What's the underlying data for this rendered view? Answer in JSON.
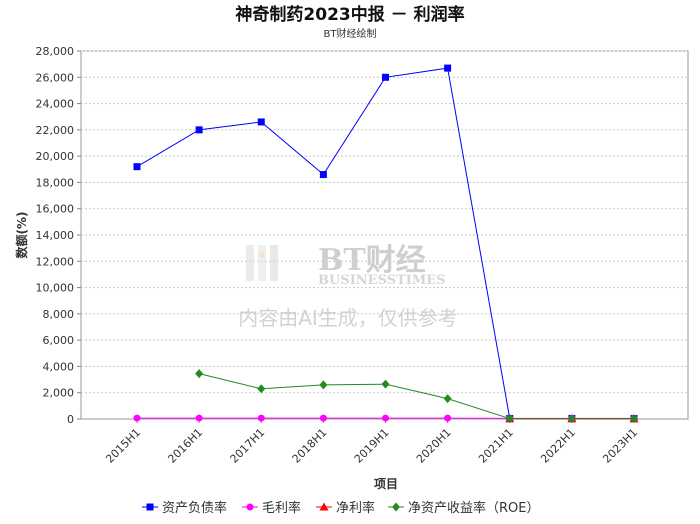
{
  "chart_data": {
    "type": "line",
    "title": "神奇制药2023中报 － 利润率",
    "subtitle": "BT财经绘制",
    "xlabel": "项目",
    "ylabel": "数额(%)",
    "ylim": [
      0,
      28000
    ],
    "yticks": [
      0,
      2000,
      4000,
      6000,
      8000,
      10000,
      12000,
      14000,
      16000,
      18000,
      20000,
      22000,
      24000,
      26000,
      28000
    ],
    "ytick_labels": [
      "0",
      "2,000",
      "4,000",
      "6,000",
      "8,000",
      "10,000",
      "12,000",
      "14,000",
      "16,000",
      "18,000",
      "20,000",
      "22,000",
      "24,000",
      "26,000",
      "28,000"
    ],
    "categories": [
      "2015H1",
      "2016H1",
      "2017H1",
      "2018H1",
      "2019H1",
      "2020H1",
      "2021H1",
      "2022H1",
      "2023H1"
    ],
    "grid": true,
    "legend_position": "bottom",
    "series": [
      {
        "name": "资产负债率",
        "color": "#0000ff",
        "marker": "square",
        "values": [
          19200,
          22000,
          22600,
          18600,
          26000,
          26700,
          40,
          40,
          40
        ]
      },
      {
        "name": "毛利率",
        "color": "#ff00ff",
        "marker": "circle",
        "values": [
          70,
          70,
          70,
          70,
          70,
          70,
          50,
          50,
          50
        ]
      },
      {
        "name": "净利率",
        "color": "#ff0000",
        "marker": "triangle",
        "values": [
          null,
          null,
          null,
          null,
          null,
          null,
          5,
          5,
          5
        ]
      },
      {
        "name": "净资产收益率（ROE）",
        "color": "#228b22",
        "marker": "diamond",
        "values": [
          null,
          3450,
          2300,
          2600,
          2650,
          1550,
          30,
          30,
          30
        ]
      }
    ]
  },
  "watermark": {
    "brand_logo": "BT财经",
    "brand_sub": "BUSINESSTIMES",
    "note": "内容由AI生成，仅供参考"
  }
}
